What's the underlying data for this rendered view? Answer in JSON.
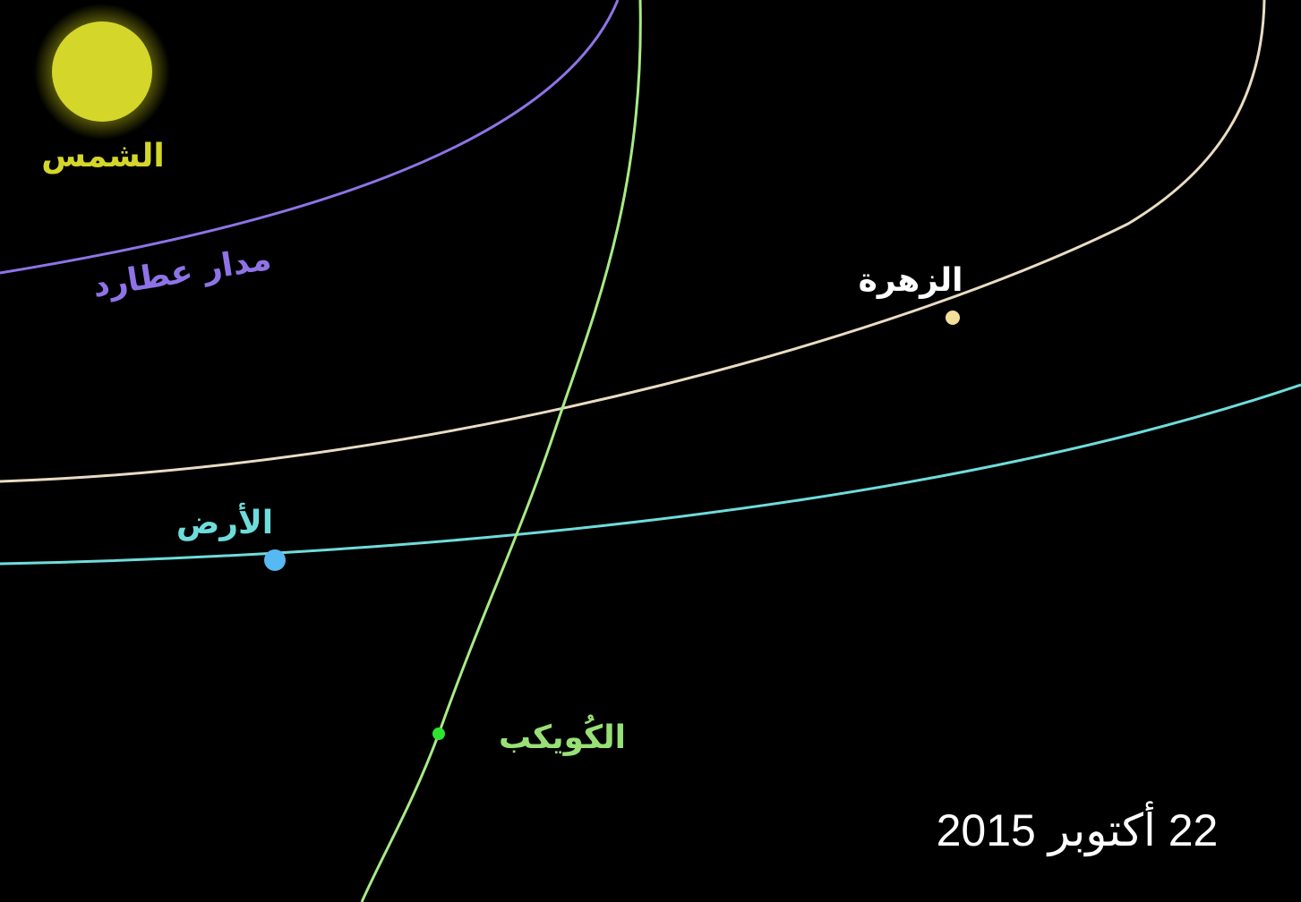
{
  "labels": {
    "sun": "الشمس",
    "mercury_orbit": "مدار عطارد",
    "venus": "الزهرة",
    "earth": "الأرض",
    "asteroid": "الكُويكب"
  },
  "date": "22 أكتوبر 2015",
  "colors": {
    "background": "#000000",
    "sun": "#d4d62a",
    "sun_glow": "#b3b514",
    "mercury_orbit": "#8f73e6",
    "venus_orbit": "#e9dcc3",
    "venus_dot": "#f1df9a",
    "earth_orbit": "#6fdcdc",
    "earth_dot": "#56b9f2",
    "asteroid_path": "#a8eb86",
    "asteroid_dot": "#2fe52f",
    "asteroid_label": "#98e076",
    "date_text": "#ffffff"
  }
}
